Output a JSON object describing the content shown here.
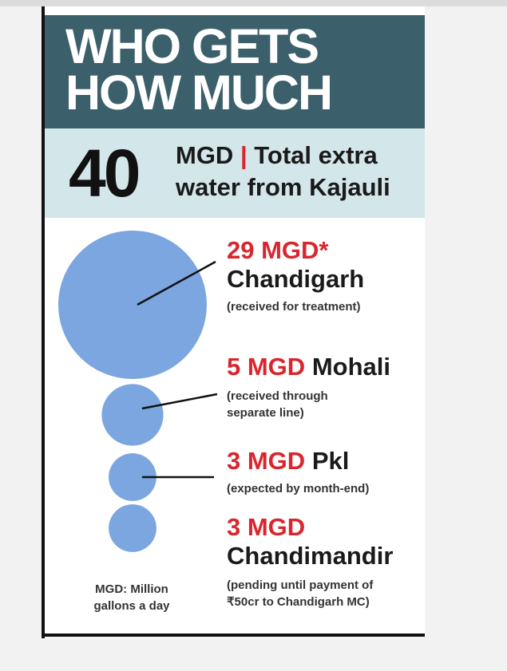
{
  "header": {
    "title_line1": "WHO GETS",
    "title_line2": "HOW MUCH"
  },
  "total": {
    "value": "40",
    "unit": "MGD",
    "separator": "|",
    "text_line1": "Total extra",
    "text_line2": "water from Kajauli"
  },
  "chart_data": {
    "type": "bubble",
    "unit": "MGD",
    "total": 40,
    "categories": [
      "Chandigarh",
      "Mohali",
      "Pkl",
      "Chandimandir"
    ],
    "values": [
      29,
      5,
      3,
      3
    ],
    "items": [
      {
        "value_label": "29 MGD*",
        "name": "Chandigarh",
        "note": "(received for treatment)"
      },
      {
        "value_label": "5 MGD",
        "name": "Mohali",
        "note_line1": "(received through",
        "note_line2": "separate line)"
      },
      {
        "value_label": "3 MGD",
        "name": "Pkl",
        "note": "(expected by month-end)"
      },
      {
        "value_label": "3 MGD",
        "name": "Chandimandir",
        "note_line1": "(pending until payment of",
        "note_line2": "₹50cr to Chandigarh MC)"
      }
    ]
  },
  "footnote": {
    "line1": "MGD: Million",
    "line2": "gallons a day"
  },
  "colors": {
    "header_bg": "#3b5f6b",
    "total_bg": "#d3e6ea",
    "bubble": "#7ba6e0",
    "accent": "#d9262e"
  }
}
